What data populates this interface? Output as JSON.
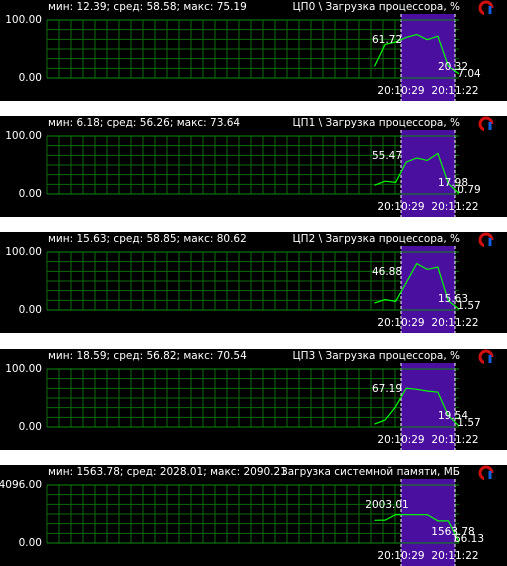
{
  "chart_data": [
    {
      "type": "line",
      "subtitle": "мин: 12.39; сред: 58.58; макс: 75.19",
      "title": "ЦП0 \\ Загрузка процессора, %",
      "ylim": [
        0,
        100
      ],
      "yticks": [
        {
          "value": 0,
          "label": "0.00"
        },
        {
          "value": 100,
          "label": "100.00"
        }
      ],
      "x_labels": [
        "20:10:29",
        "20:11:22"
      ],
      "annotations": [
        "61.72",
        "20.32",
        "7.04"
      ],
      "series": [
        {
          "color": "#00ff00",
          "values": [
            null,
            null,
            null,
            null,
            null,
            null,
            null,
            null,
            null,
            null,
            null,
            null,
            null,
            null,
            null,
            null,
            null,
            null,
            null,
            null,
            null,
            null,
            null,
            null,
            null,
            null,
            null,
            null,
            null,
            null,
            null,
            20,
            58,
            62,
            70,
            75,
            66,
            72,
            20.32,
            7.04
          ]
        }
      ]
    },
    {
      "type": "line",
      "subtitle": "мин: 6.18; сред: 56.26; макс: 73.64",
      "title": "ЦП1 \\ Загрузка процессора, %",
      "ylim": [
        0,
        100
      ],
      "yticks": [
        {
          "value": 0,
          "label": "0.00"
        },
        {
          "value": 100,
          "label": "100.00"
        }
      ],
      "x_labels": [
        "20:10:29",
        "20:11:22"
      ],
      "annotations": [
        "55.47",
        "17.98",
        "0.79"
      ],
      "series": [
        {
          "color": "#00ff00",
          "values": [
            null,
            null,
            null,
            null,
            null,
            null,
            null,
            null,
            null,
            null,
            null,
            null,
            null,
            null,
            null,
            null,
            null,
            null,
            null,
            null,
            null,
            null,
            null,
            null,
            null,
            null,
            null,
            null,
            null,
            null,
            null,
            15,
            22,
            20,
            55,
            62,
            58,
            70,
            17.98,
            0.79
          ]
        }
      ]
    },
    {
      "type": "line",
      "subtitle": "мин: 15.63; сред: 58.85; макс: 80.62",
      "title": "ЦП2 \\ Загрузка процессора, %",
      "ylim": [
        0,
        100
      ],
      "yticks": [
        {
          "value": 0,
          "label": "0.00"
        },
        {
          "value": 100,
          "label": "100.00"
        }
      ],
      "x_labels": [
        "20:10:29",
        "20:11:22"
      ],
      "annotations": [
        "46.88",
        "15.63",
        "1.57"
      ],
      "series": [
        {
          "color": "#00ff00",
          "values": [
            null,
            null,
            null,
            null,
            null,
            null,
            null,
            null,
            null,
            null,
            null,
            null,
            null,
            null,
            null,
            null,
            null,
            null,
            null,
            null,
            null,
            null,
            null,
            null,
            null,
            null,
            null,
            null,
            null,
            null,
            null,
            12,
            18,
            15,
            47,
            80,
            70,
            74,
            15.63,
            1.57
          ]
        }
      ]
    },
    {
      "type": "line",
      "subtitle": "мин: 18.59; сред: 56.82; макс: 70.54",
      "title": "ЦП3 \\ Загрузка процессора, %",
      "ylim": [
        0,
        100
      ],
      "yticks": [
        {
          "value": 0,
          "label": "0.00"
        },
        {
          "value": 100,
          "label": "100.00"
        }
      ],
      "x_labels": [
        "20:10:29",
        "20:11:22"
      ],
      "annotations": [
        "67.19",
        "19.54",
        "1.57"
      ],
      "series": [
        {
          "color": "#00ff00",
          "values": [
            null,
            null,
            null,
            null,
            null,
            null,
            null,
            null,
            null,
            null,
            null,
            null,
            null,
            null,
            null,
            null,
            null,
            null,
            null,
            null,
            null,
            null,
            null,
            null,
            null,
            null,
            null,
            null,
            null,
            null,
            null,
            5,
            12,
            35,
            67,
            65,
            62,
            60,
            19.54,
            1.57
          ]
        }
      ]
    },
    {
      "type": "line",
      "subtitle": "мин: 1563.78; сред: 2028.01; макс: 2090.21",
      "title": "Загрузка системной памяти, МБ",
      "ylim": [
        0,
        4096
      ],
      "yticks": [
        {
          "value": 0,
          "label": "0.00"
        },
        {
          "value": 4096,
          "label": "4096.00"
        }
      ],
      "x_labels": [
        "20:10:29",
        "20:11:22"
      ],
      "annotations": [
        "2003.01",
        "1563.78",
        "66.13"
      ],
      "series": [
        {
          "color": "#00ff00",
          "values": [
            null,
            null,
            null,
            null,
            null,
            null,
            null,
            null,
            null,
            null,
            null,
            null,
            null,
            null,
            null,
            null,
            null,
            null,
            null,
            null,
            null,
            null,
            null,
            null,
            null,
            null,
            null,
            null,
            null,
            null,
            null,
            1600,
            1620,
            2003.01,
            2003,
            2000,
            2003,
            1563.78,
            1563.78,
            66.13
          ]
        }
      ]
    }
  ]
}
